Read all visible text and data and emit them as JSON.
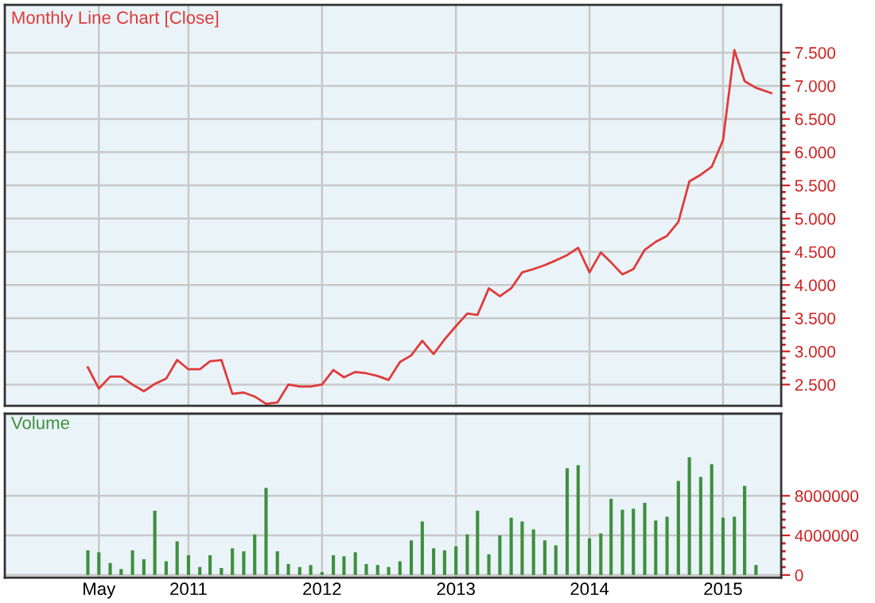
{
  "chart_data": [
    {
      "type": "line",
      "title": "Monthly Line Chart [Close]",
      "x": [
        "2010-04-01",
        "2010-05-01",
        "2010-06-01",
        "2010-07-01",
        "2010-08-01",
        "2010-09-01",
        "2010-10-01",
        "2010-11-01",
        "2010-12-01",
        "2011-01-01",
        "2011-02-01",
        "2011-03-01",
        "2011-04-01",
        "2011-05-01",
        "2011-06-01",
        "2011-07-01",
        "2011-08-01",
        "2011-09-01",
        "2011-10-01",
        "2011-11-01",
        "2011-12-01",
        "2012-01-01",
        "2012-02-01",
        "2012-03-01",
        "2012-04-01",
        "2012-05-01",
        "2012-06-01",
        "2012-07-01",
        "2012-08-01",
        "2012-09-01",
        "2012-10-01",
        "2012-11-01",
        "2012-12-01",
        "2013-01-01",
        "2013-02-01",
        "2013-03-01",
        "2013-04-01",
        "2013-05-01",
        "2013-06-01",
        "2013-07-01",
        "2013-08-01",
        "2013-09-01",
        "2013-10-01",
        "2013-11-01",
        "2013-12-01",
        "2014-01-01",
        "2014-02-01",
        "2014-03-01",
        "2014-04-01",
        "2014-05-01",
        "2014-06-01",
        "2014-07-01",
        "2014-08-01",
        "2014-09-01",
        "2014-10-01",
        "2014-11-01",
        "2014-12-01",
        "2015-01-01",
        "2015-02-01",
        "2015-03-01",
        "2015-04-01",
        "2015-05-13"
      ],
      "series": [
        {
          "color": "#e03a3a",
          "values": [
            2760,
            2440,
            2620,
            2620,
            2500,
            2400,
            2510,
            2590,
            2870,
            2730,
            2730,
            2850,
            2870,
            2360,
            2380,
            2320,
            2210,
            2230,
            2500,
            2470,
            2470,
            2500,
            2720,
            2610,
            2690,
            2670,
            2630,
            2570,
            2840,
            2940,
            3160,
            2960,
            3180,
            3380,
            3570,
            3550,
            3950,
            3830,
            3950,
            4190,
            4240,
            4300,
            4370,
            4450,
            4560,
            4190,
            4490,
            4340,
            4160,
            4240,
            4530,
            4650,
            4740,
            4950,
            5560,
            5660,
            5780,
            6180,
            7540,
            7070,
            6970,
            6890
          ]
        }
      ],
      "xlim": [
        "2009-08-17",
        "2015-06-09"
      ],
      "xticks": [
        {
          "value": "2010-05-01",
          "label": null
        },
        {
          "value": "2011-01-01",
          "label": null
        },
        {
          "value": "2012-01-01",
          "label": null
        },
        {
          "value": "2013-01-01",
          "label": null
        },
        {
          "value": "2014-01-01",
          "label": null
        },
        {
          "value": "2015-01-01",
          "label": null
        }
      ],
      "ylim": [
        2180,
        8220
      ],
      "yticks": [
        {
          "value": 2500,
          "label": "2.500"
        },
        {
          "value": 3000,
          "label": "3.000"
        },
        {
          "value": 3500,
          "label": "3.500"
        },
        {
          "value": 4000,
          "label": "4.000"
        },
        {
          "value": 4500,
          "label": "4.500"
        },
        {
          "value": 5000,
          "label": "5.000"
        },
        {
          "value": 5500,
          "label": "5.500"
        },
        {
          "value": 6000,
          "label": "6.000"
        },
        {
          "value": 6500,
          "label": "6.500"
        },
        {
          "value": 7000,
          "label": "7.000"
        },
        {
          "value": 7500,
          "label": "7.500"
        }
      ],
      "grid": true,
      "tick_labels": "y",
      "marker": "none",
      "line_style": "solid"
    },
    {
      "type": "bar",
      "title": "Volume",
      "x": [
        "2010-04-01",
        "2010-05-01",
        "2010-06-01",
        "2010-07-01",
        "2010-08-01",
        "2010-09-01",
        "2010-10-01",
        "2010-11-01",
        "2010-12-01",
        "2011-01-01",
        "2011-02-01",
        "2011-03-01",
        "2011-04-01",
        "2011-05-01",
        "2011-06-01",
        "2011-07-01",
        "2011-08-01",
        "2011-09-01",
        "2011-10-01",
        "2011-11-01",
        "2011-12-01",
        "2012-01-01",
        "2012-02-01",
        "2012-03-01",
        "2012-04-01",
        "2012-05-01",
        "2012-06-01",
        "2012-07-01",
        "2012-08-01",
        "2012-09-01",
        "2012-10-01",
        "2012-11-01",
        "2012-12-01",
        "2013-01-01",
        "2013-02-01",
        "2013-03-01",
        "2013-04-01",
        "2013-05-01",
        "2013-06-01",
        "2013-07-01",
        "2013-08-01",
        "2013-09-01",
        "2013-10-01",
        "2013-11-01",
        "2013-12-01",
        "2014-01-01",
        "2014-02-01",
        "2014-03-01",
        "2014-04-01",
        "2014-05-01",
        "2014-06-01",
        "2014-07-01",
        "2014-08-01",
        "2014-09-01",
        "2014-10-01",
        "2014-11-01",
        "2014-12-01",
        "2015-01-01",
        "2015-02-01",
        "2015-03-01",
        "2015-04-01"
      ],
      "series": [
        {
          "color": "#3f8f3f",
          "values": [
            2500000,
            2300000,
            1200000,
            600000,
            2500000,
            1600000,
            6500000,
            1400000,
            3400000,
            2000000,
            800000,
            2000000,
            700000,
            2700000,
            2400000,
            4100000,
            8800000,
            2400000,
            1100000,
            800000,
            1000000,
            300000,
            2000000,
            1900000,
            2300000,
            1100000,
            1000000,
            800000,
            1400000,
            3500000,
            5400000,
            2700000,
            2500000,
            2900000,
            4100000,
            6500000,
            2100000,
            4000000,
            5800000,
            5400000,
            4600000,
            3500000,
            3000000,
            10800000,
            11100000,
            3700000,
            4200000,
            7700000,
            6600000,
            6700000,
            7300000,
            5500000,
            5900000,
            9500000,
            11900000,
            9900000,
            11200000,
            5800000,
            5900000,
            9000000,
            1000000
          ]
        }
      ],
      "xlim": [
        "2009-08-17",
        "2015-06-09"
      ],
      "xticks": [
        {
          "value": "2010-05-01",
          "label": "May"
        },
        {
          "value": "2011-01-01",
          "label": "2011"
        },
        {
          "value": "2012-01-01",
          "label": "2012"
        },
        {
          "value": "2013-01-01",
          "label": "2013"
        },
        {
          "value": "2014-01-01",
          "label": "2014"
        },
        {
          "value": "2015-01-01",
          "label": "2015"
        }
      ],
      "ylim": [
        -270000,
        16300000
      ],
      "yticks": [
        0,
        4000000,
        8000000
      ],
      "grid": true
    }
  ]
}
